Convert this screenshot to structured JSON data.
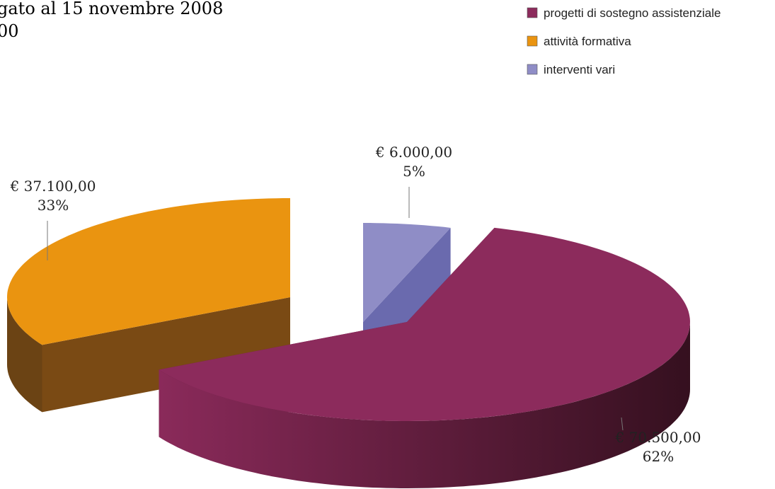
{
  "chart_data": {
    "type": "pie3d",
    "title": "gato al 15 novembre 2008",
    "subtitle": "00",
    "categories": [
      "progetti di sostegno assistenziale",
      "attività formativa",
      "interventi vari"
    ],
    "values": [
      62,
      33,
      5
    ],
    "value_labels": [
      "62%",
      "33%",
      "5%"
    ],
    "amounts": [
      70500,
      37100,
      6000
    ],
    "amount_labels": [
      "€ 70.500,00",
      "€ 37.100,00",
      "€ 6.000,00"
    ],
    "colors": [
      "#8c2b5c",
      "#ea9410",
      "#8f8dc6"
    ],
    "legend": "top-right"
  }
}
